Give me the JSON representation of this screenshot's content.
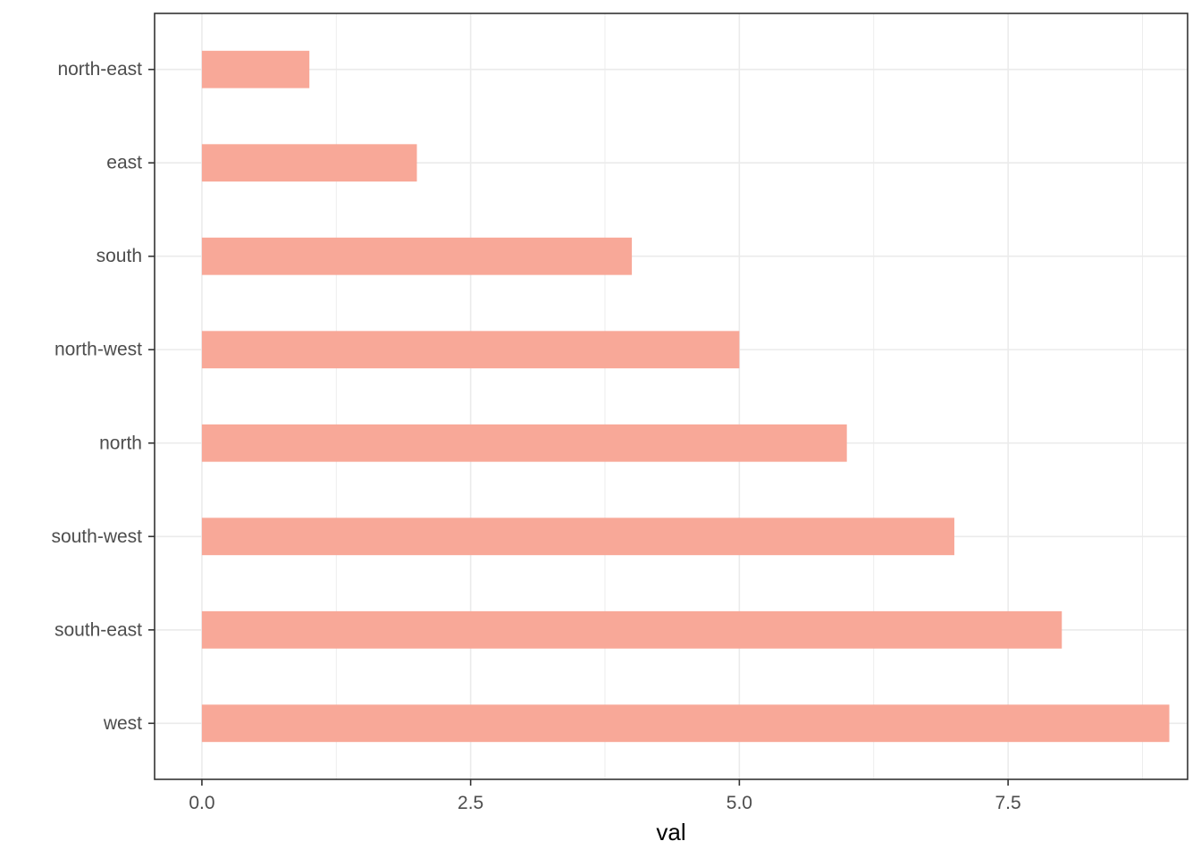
{
  "chart_data": {
    "type": "bar",
    "orientation": "horizontal",
    "categories": [
      "north-east",
      "east",
      "south",
      "north-west",
      "north",
      "south-west",
      "south-east",
      "west"
    ],
    "values": [
      1,
      2,
      4,
      5,
      6,
      7,
      8,
      9
    ],
    "xlabel": "val",
    "ylabel": "",
    "title": "",
    "xlim": [
      -0.44,
      9.17
    ],
    "xticks": [
      0,
      2.5,
      5,
      7.5
    ],
    "xtick_labels": [
      "0.0",
      "2.5",
      "5.0",
      "7.5"
    ],
    "grid": true,
    "legend": "none",
    "colors": {
      "bar": "#f8a898",
      "grid": "#ebebeb",
      "border": "#333333",
      "tick_text": "#4d4d4d"
    }
  }
}
